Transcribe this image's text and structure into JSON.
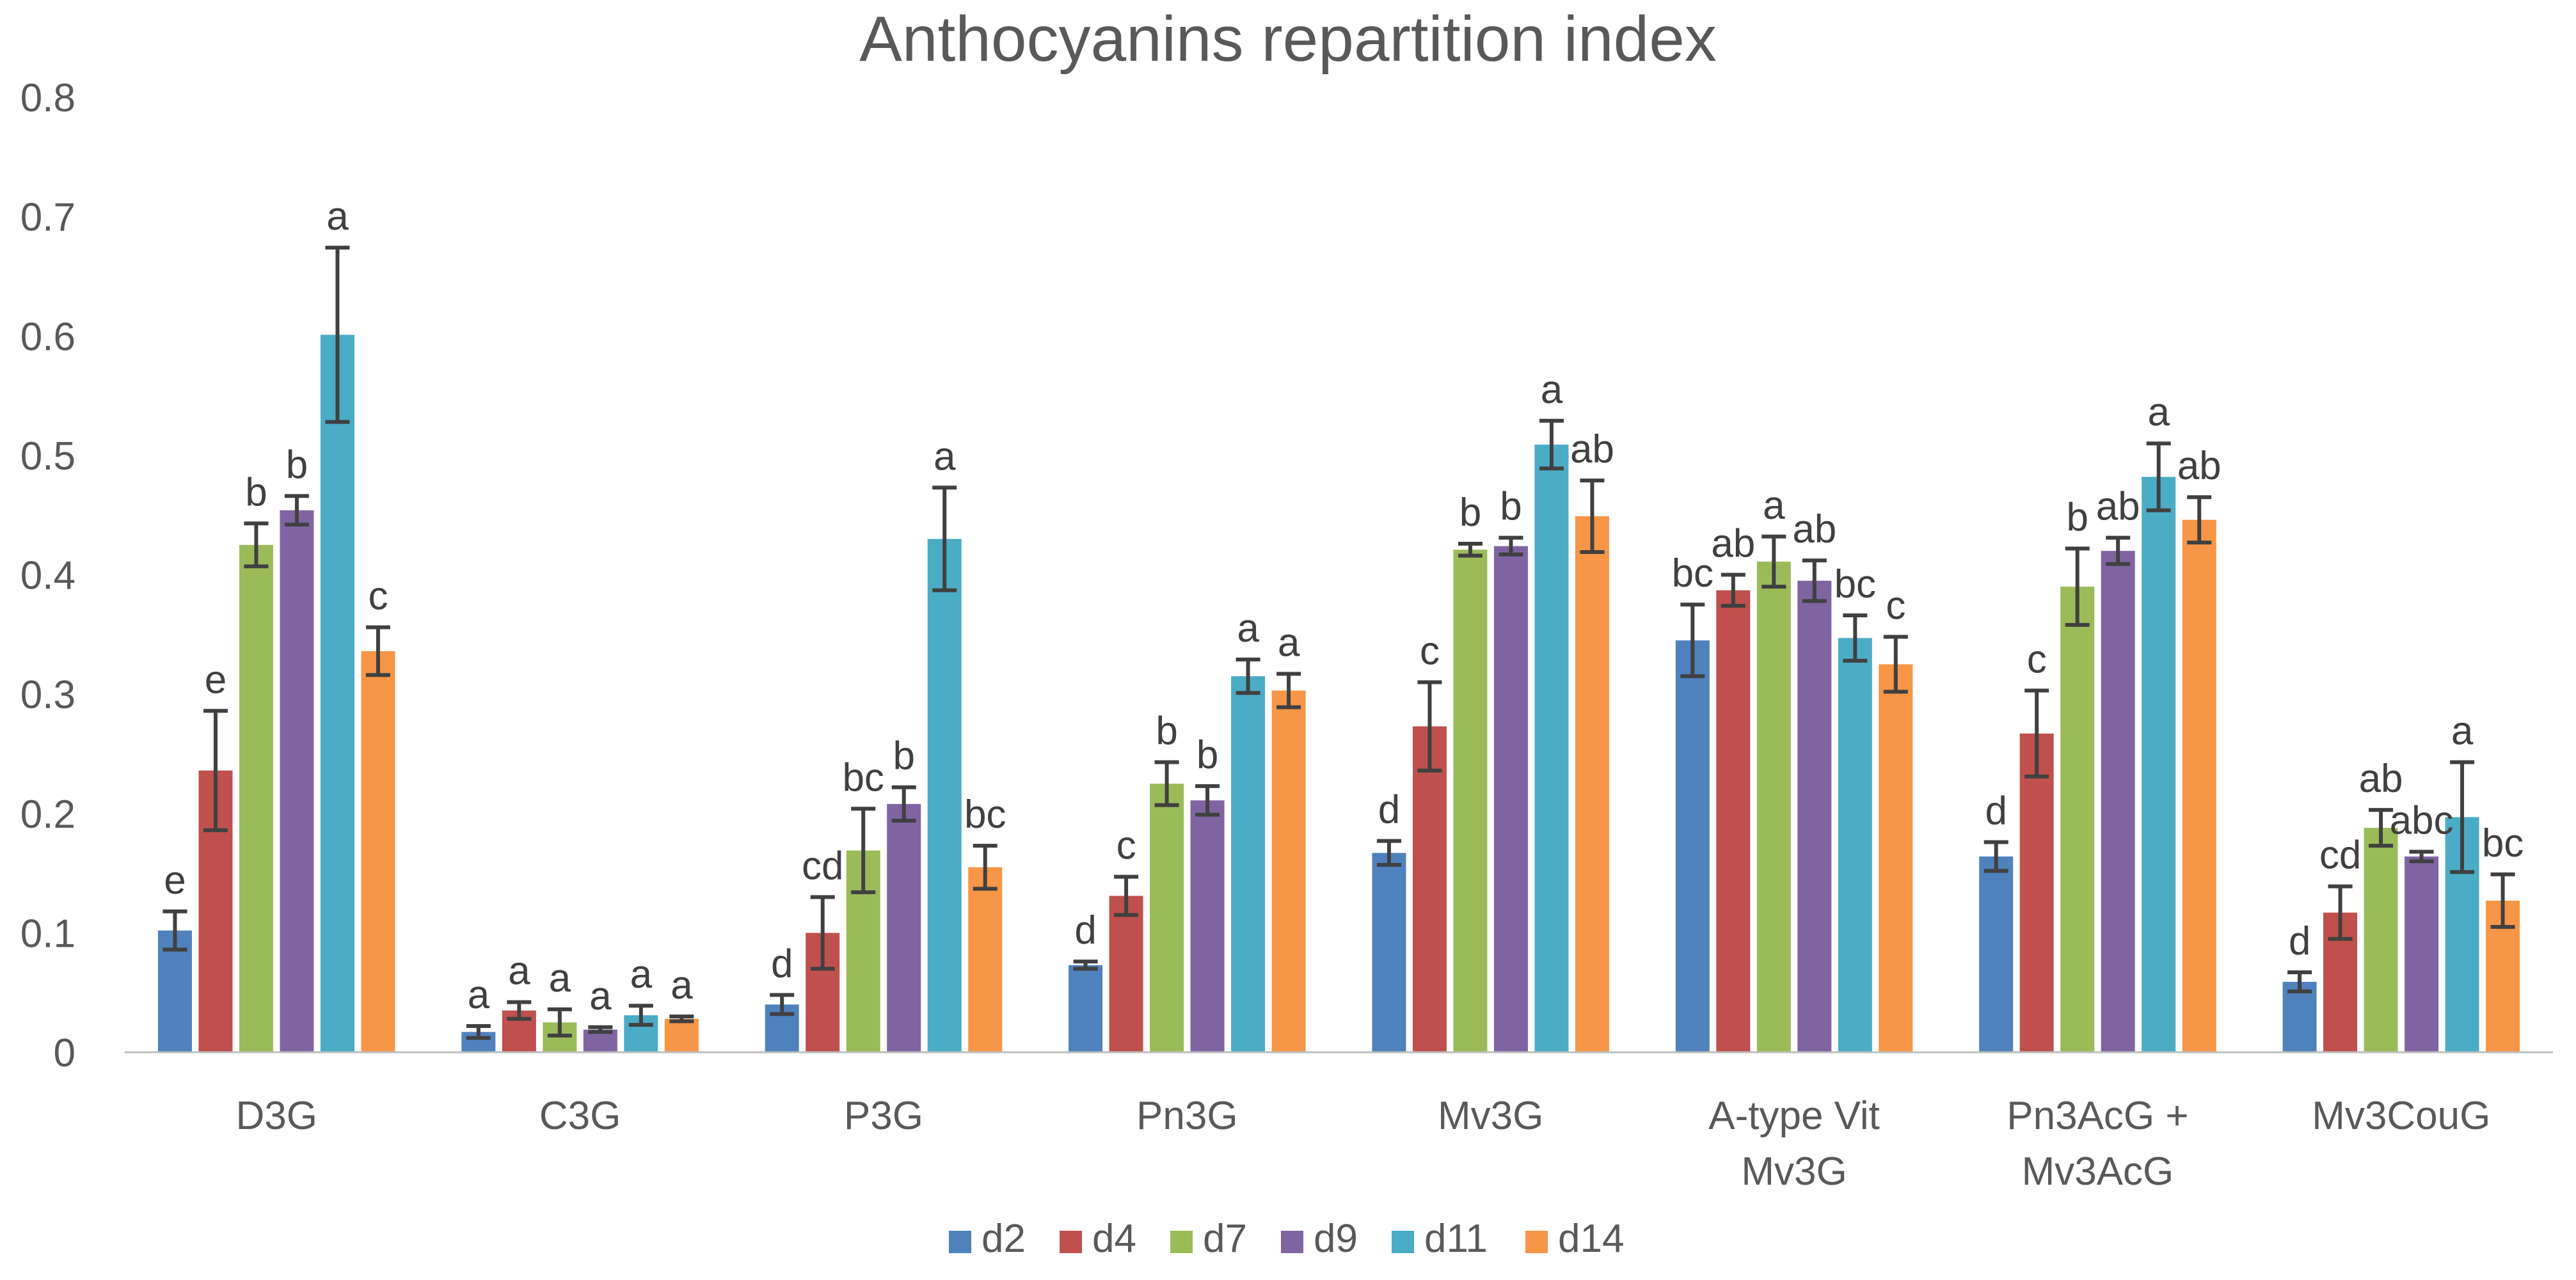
{
  "chart_data": {
    "type": "bar",
    "title": "Anthocyanins repartition index",
    "xlabel": "",
    "ylabel": "",
    "ylim": [
      0,
      0.8
    ],
    "yticks": [
      0,
      0.1,
      0.2,
      0.3,
      0.4,
      0.5,
      0.6,
      0.7,
      0.8
    ],
    "ytick_labels": [
      "0",
      "0.1",
      "0.2",
      "0.3",
      "0.4",
      "0.5",
      "0.6",
      "0.7",
      "0.8"
    ],
    "grid": false,
    "legend_position": "bottom",
    "categories": [
      [
        "D3G"
      ],
      [
        "C3G"
      ],
      [
        "P3G"
      ],
      [
        "Pn3G"
      ],
      [
        "Mv3G"
      ],
      [
        "A-type Vit",
        "Mv3G"
      ],
      [
        "Pn3AcG +",
        "Mv3AcG"
      ],
      [
        "Mv3CouG"
      ]
    ],
    "series": [
      {
        "name": "d2",
        "color": "#4f81bd",
        "values": [
          0.102,
          0.017,
          0.04,
          0.073,
          0.167,
          0.345,
          0.164,
          0.059
        ],
        "errors": [
          0.016,
          0.005,
          0.008,
          0.003,
          0.01,
          0.03,
          0.012,
          0.008
        ],
        "letters": [
          "e",
          "a",
          "d",
          "d",
          "d",
          "bc",
          "d",
          "d"
        ]
      },
      {
        "name": "d4",
        "color": "#c0504d",
        "values": [
          0.236,
          0.035,
          0.1,
          0.131,
          0.273,
          0.387,
          0.267,
          0.117
        ],
        "errors": [
          0.05,
          0.007,
          0.03,
          0.016,
          0.037,
          0.013,
          0.036,
          0.022
        ],
        "letters": [
          "e",
          "a",
          "cd",
          "c",
          "c",
          "ab",
          "c",
          "cd"
        ]
      },
      {
        "name": "d7",
        "color": "#9bbb59",
        "values": [
          0.425,
          0.025,
          0.169,
          0.225,
          0.421,
          0.411,
          0.39,
          0.188
        ],
        "errors": [
          0.018,
          0.011,
          0.035,
          0.018,
          0.005,
          0.021,
          0.032,
          0.015
        ],
        "letters": [
          "b",
          "a",
          "bc",
          "b",
          "b",
          "a",
          "b",
          "ab"
        ]
      },
      {
        "name": "d9",
        "color": "#8064a2",
        "values": [
          0.454,
          0.019,
          0.208,
          0.211,
          0.424,
          0.395,
          0.42,
          0.164
        ],
        "errors": [
          0.012,
          0.002,
          0.014,
          0.012,
          0.007,
          0.017,
          0.011,
          0.004
        ],
        "letters": [
          "b",
          "a",
          "b",
          "b",
          "b",
          "ab",
          "ab",
          "abc"
        ]
      },
      {
        "name": "d11",
        "color": "#4bacc6",
        "values": [
          0.601,
          0.031,
          0.43,
          0.315,
          0.509,
          0.347,
          0.482,
          0.197
        ],
        "errors": [
          0.073,
          0.008,
          0.043,
          0.014,
          0.02,
          0.019,
          0.028,
          0.046
        ],
        "letters": [
          "a",
          "a",
          "a",
          "a",
          "a",
          "bc",
          "a",
          "a"
        ]
      },
      {
        "name": "d14",
        "color": "#f79646",
        "values": [
          0.336,
          0.028,
          0.155,
          0.303,
          0.449,
          0.325,
          0.446,
          0.127
        ],
        "errors": [
          0.02,
          0.002,
          0.018,
          0.014,
          0.03,
          0.023,
          0.019,
          0.022
        ],
        "letters": [
          "c",
          "a",
          "bc",
          "a",
          "ab",
          "c",
          "ab",
          "bc"
        ]
      }
    ]
  },
  "colors": {
    "axis": "#bfbfbf",
    "text": "#595959",
    "error_bar": "#404040"
  }
}
